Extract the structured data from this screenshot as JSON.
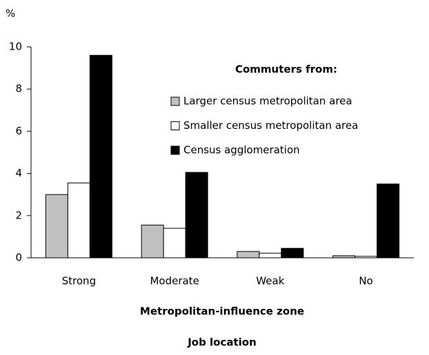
{
  "chart_data": {
    "type": "bar",
    "y_label": "%",
    "x_label": "Metropolitan-influence zone",
    "subtitle": "Job location",
    "legend_title": "Commuters from:",
    "legend_position": "upper right",
    "categories": [
      "Strong",
      "Moderate",
      "Weak",
      "No"
    ],
    "series": [
      {
        "name": "Larger census metropolitan area",
        "color": "#c0c0c0",
        "values": [
          3.0,
          1.55,
          0.3,
          0.1
        ]
      },
      {
        "name": "Smaller census metropolitan area",
        "color": "#ffffff",
        "values": [
          3.55,
          1.4,
          0.22,
          0.07
        ]
      },
      {
        "name": "Census agglomeration",
        "color": "#000000",
        "values": [
          9.6,
          4.05,
          0.45,
          3.5
        ]
      }
    ],
    "ylim": [
      0,
      10
    ],
    "yticks": [
      0,
      2,
      4,
      6,
      8,
      10
    ],
    "grid": false
  }
}
